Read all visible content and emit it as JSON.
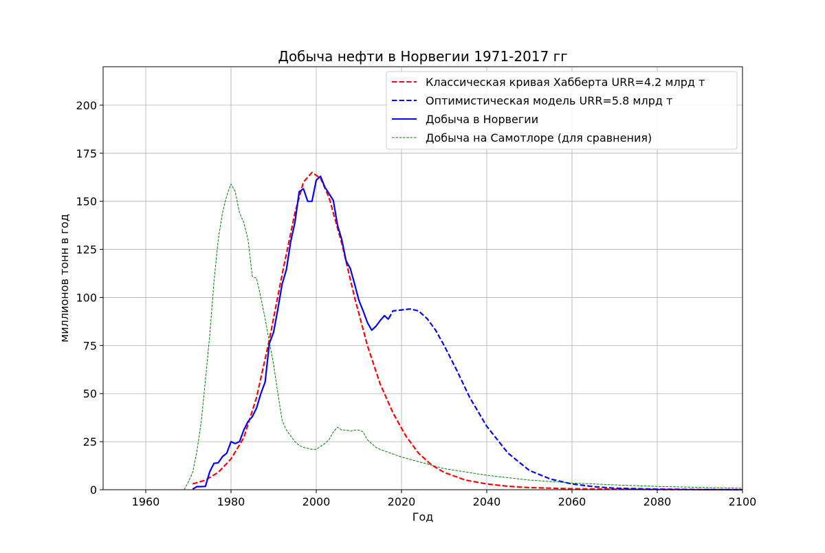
{
  "chart_data": {
    "type": "line",
    "title": "Добыча нефти в Норвегии 1971-2017 гг",
    "xlabel": "Год",
    "ylabel": "миллионов тонн в год",
    "xlim": [
      1950,
      2100
    ],
    "ylim": [
      0,
      220
    ],
    "xticks": [
      1960,
      1980,
      2000,
      2020,
      2040,
      2060,
      2080,
      2100
    ],
    "yticks": [
      0,
      25,
      50,
      75,
      100,
      125,
      150,
      175,
      200
    ],
    "grid": true,
    "legend_position": "top-right",
    "series": [
      {
        "name": "Классическая кривая Хабберта URR=4.2 млрд т",
        "color": "#ff0000",
        "style": "dashed",
        "x": [
          1971,
          1974,
          1977,
          1980,
          1983,
          1986,
          1989,
          1992,
          1995,
          1997,
          1999,
          2001,
          2003,
          2006,
          2009,
          2012,
          2015,
          2018,
          2021,
          2024,
          2027,
          2030,
          2035,
          2040,
          2045,
          2050,
          2060,
          2070,
          2080,
          2100
        ],
        "y": [
          3,
          5,
          9,
          16,
          27,
          48,
          78,
          112,
          144,
          160,
          165,
          162,
          152,
          128,
          100,
          75,
          55,
          40,
          28,
          19,
          13,
          9,
          5,
          3,
          1.8,
          1.1,
          0.5,
          0.3,
          0.1,
          0
        ]
      },
      {
        "name": "Оптимистическая модель URR=5.8 млрд т",
        "color": "#0000ff",
        "style": "dashed",
        "x": [
          2017,
          2018,
          2020,
          2022,
          2024,
          2026,
          2028,
          2030,
          2033,
          2036,
          2040,
          2045,
          2050,
          2055,
          2060,
          2065,
          2070,
          2080,
          2090,
          2100
        ],
        "y": [
          89,
          93,
          93.5,
          94,
          93,
          89,
          83,
          75,
          62,
          48,
          33,
          19,
          10,
          5.5,
          3,
          1.6,
          0.8,
          0.3,
          0.1,
          0
        ]
      },
      {
        "name": "Добыча в Норвегии",
        "color": "#0000ff",
        "style": "solid",
        "x": [
          1971,
          1972,
          1973,
          1974,
          1975,
          1976,
          1977,
          1978,
          1979,
          1980,
          1981,
          1982,
          1983,
          1984,
          1985,
          1986,
          1987,
          1988,
          1989,
          1990,
          1991,
          1992,
          1993,
          1994,
          1995,
          1996,
          1997,
          1998,
          1999,
          2000,
          2001,
          2002,
          2003,
          2004,
          2005,
          2006,
          2007,
          2008,
          2009,
          2010,
          2011,
          2012,
          2013,
          2014,
          2015,
          2016,
          2017
        ],
        "y": [
          0.3,
          1.6,
          1.6,
          1.7,
          9.3,
          13.7,
          14,
          17.2,
          19,
          25,
          24,
          25,
          31,
          35.5,
          38,
          42.5,
          50,
          56,
          76,
          82,
          94,
          107,
          114.5,
          129,
          139,
          155,
          156.5,
          150,
          150,
          161,
          163,
          157.5,
          154,
          150.5,
          137.5,
          130,
          119,
          115,
          107,
          98.5,
          93,
          87,
          83,
          85,
          88,
          90.5,
          88.5
        ]
      },
      {
        "name": "Добыча на Самотлоре (для сравнения)",
        "color": "#008000",
        "style": "dashed-thin",
        "x": [
          1969,
          1970,
          1971,
          1972,
          1973,
          1974,
          1975,
          1976,
          1977,
          1978,
          1979,
          1980,
          1981,
          1982,
          1983,
          1984,
          1985,
          1986,
          1987,
          1988,
          1989,
          1990,
          1991,
          1992,
          1993,
          1994,
          1995,
          1996,
          1997,
          1998,
          1999,
          2000,
          2001,
          2002,
          2003,
          2004,
          2005,
          2006,
          2007,
          2008,
          2009,
          2010,
          2011,
          2012,
          2013,
          2014,
          2015,
          2020,
          2025,
          2030,
          2040,
          2050,
          2060,
          2070,
          2080,
          2090,
          2100
        ],
        "y": [
          0,
          4,
          9,
          20,
          35,
          57,
          80,
          108,
          130,
          144,
          153,
          159,
          155,
          144,
          139,
          130,
          111,
          110,
          100,
          89,
          77,
          65,
          50,
          36,
          31,
          28,
          25,
          23,
          22,
          21.5,
          21,
          21,
          22.5,
          24,
          26,
          30,
          32.5,
          31,
          31,
          30.5,
          31,
          31,
          30,
          26,
          24,
          22,
          21,
          17,
          14,
          11,
          7.5,
          5,
          3.5,
          2.5,
          1.7,
          1.2,
          0.8
        ]
      }
    ]
  }
}
